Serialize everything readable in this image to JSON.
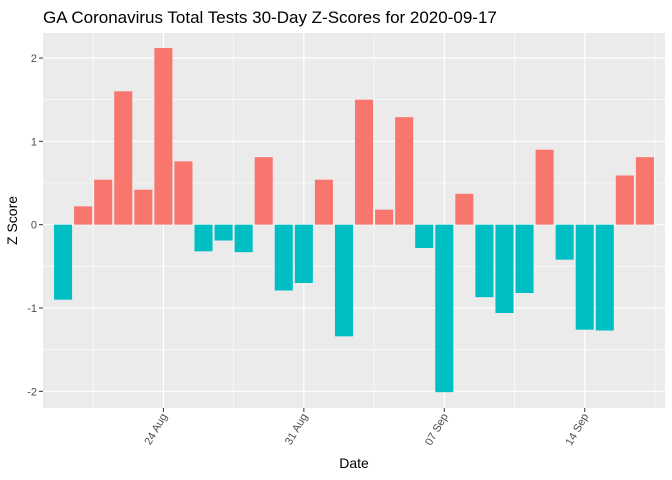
{
  "chart_data": {
    "type": "bar",
    "title": "GA Coronavirus Total Tests 30-Day Z-Scores for 2020-09-17",
    "xlabel": "Date",
    "ylabel": "Z Score",
    "x_axis": "date",
    "ylim": [
      -2.2,
      2.3
    ],
    "y_ticks": [
      -2,
      -1,
      0,
      1,
      2
    ],
    "x_tick_labels": [
      {
        "date": "2020-08-24",
        "label": "24 Aug"
      },
      {
        "date": "2020-08-31",
        "label": "31 Aug"
      },
      {
        "date": "2020-09-07",
        "label": "07 Sep"
      },
      {
        "date": "2020-09-14",
        "label": "14 Sep"
      }
    ],
    "grid": true,
    "legend": "none",
    "colors": {
      "positive": "#F8766D",
      "negative": "#00BFC4",
      "panel": "#EBEBEB",
      "grid": "#FFFFFF"
    },
    "dates": [
      "2020-08-19",
      "2020-08-20",
      "2020-08-21",
      "2020-08-22",
      "2020-08-23",
      "2020-08-24",
      "2020-08-25",
      "2020-08-26",
      "2020-08-27",
      "2020-08-28",
      "2020-08-29",
      "2020-08-30",
      "2020-08-31",
      "2020-09-01",
      "2020-09-02",
      "2020-09-03",
      "2020-09-04",
      "2020-09-05",
      "2020-09-06",
      "2020-09-07",
      "2020-09-08",
      "2020-09-09",
      "2020-09-10",
      "2020-09-11",
      "2020-09-12",
      "2020-09-13",
      "2020-09-14",
      "2020-09-15",
      "2020-09-16",
      "2020-09-17"
    ],
    "values": [
      -0.9,
      0.22,
      0.54,
      1.6,
      0.42,
      2.12,
      0.76,
      -0.32,
      -0.19,
      -0.33,
      0.81,
      -0.79,
      -0.7,
      0.54,
      -1.34,
      1.5,
      0.18,
      1.29,
      -0.28,
      -2.01,
      0.37,
      -0.87,
      -1.06,
      -0.82,
      0.9,
      -0.42,
      -1.26,
      -1.27,
      0.59,
      0.81
    ]
  }
}
